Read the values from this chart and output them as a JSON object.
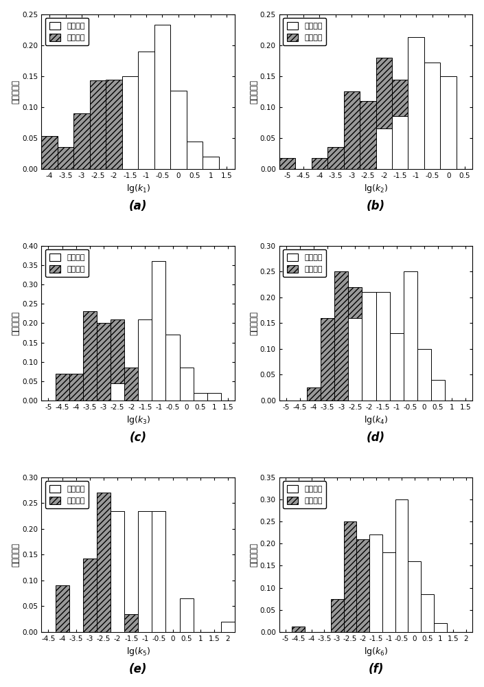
{
  "plots": [
    {
      "label": "(a)",
      "xlabel_key": "k_1",
      "ylim": [
        0,
        0.25
      ],
      "yticks": [
        0.0,
        0.05,
        0.1,
        0.15,
        0.2,
        0.25
      ],
      "xlim": [
        -4.25,
        1.75
      ],
      "xticks": [
        -4.0,
        -3.5,
        -3.0,
        -2.5,
        -2.0,
        -1.5,
        -1.0,
        -0.5,
        0.0,
        0.5,
        1.0,
        1.5
      ],
      "blast_bins": [
        -4.0,
        -3.5,
        -3.0,
        -2.5,
        -2.0,
        -1.5,
        -1.0,
        -0.5,
        0.0,
        0.5,
        1.0
      ],
      "blast_vals": [
        0.0,
        0.0,
        0.0,
        0.0,
        0.0,
        0.15,
        0.19,
        0.233,
        0.127,
        0.044,
        0.02
      ],
      "micro_bins": [
        -4.0,
        -3.5,
        -3.0,
        -2.5,
        -2.0,
        -1.5,
        -1.0,
        -0.5,
        0.0,
        0.5,
        1.0
      ],
      "micro_vals": [
        0.053,
        0.035,
        0.09,
        0.143,
        0.144,
        0.125,
        0.143,
        0.064,
        0.053,
        0.035,
        0.018
      ]
    },
    {
      "label": "(b)",
      "xlabel_key": "k_2",
      "ylim": [
        0,
        0.25
      ],
      "yticks": [
        0.0,
        0.05,
        0.1,
        0.15,
        0.2,
        0.25
      ],
      "xlim": [
        -5.25,
        0.75
      ],
      "xticks": [
        -5.0,
        -4.5,
        -4.0,
        -3.5,
        -3.0,
        -2.5,
        -2.0,
        -1.5,
        -1.0,
        -0.5,
        0.0,
        0.5
      ],
      "blast_bins": [
        -5.0,
        -4.5,
        -4.0,
        -3.5,
        -3.0,
        -2.5,
        -2.0,
        -1.5,
        -1.0,
        -0.5,
        0.0
      ],
      "blast_vals": [
        0.0,
        0.0,
        0.0,
        0.0,
        0.0,
        0.0,
        0.065,
        0.085,
        0.213,
        0.172,
        0.15
      ],
      "micro_bins": [
        -5.0,
        -4.5,
        -4.0,
        -3.5,
        -3.0,
        -2.5,
        -2.0,
        -1.5,
        -1.0,
        -0.5,
        0.0
      ],
      "micro_vals": [
        0.018,
        0.0,
        0.018,
        0.035,
        0.125,
        0.11,
        0.18,
        0.144,
        0.14,
        0.064,
        0.035
      ]
    },
    {
      "label": "(c)",
      "xlabel_key": "k_3",
      "ylim": [
        0,
        0.4
      ],
      "yticks": [
        0.0,
        0.05,
        0.1,
        0.15,
        0.2,
        0.25,
        0.3,
        0.35,
        0.4
      ],
      "xlim": [
        -5.25,
        1.75
      ],
      "xticks": [
        -5.0,
        -4.5,
        -4.0,
        -3.5,
        -3.0,
        -2.5,
        -2.0,
        -1.5,
        -1.0,
        -0.5,
        0.0,
        0.5,
        1.0,
        1.5
      ],
      "blast_bins": [
        -5.0,
        -4.5,
        -4.0,
        -3.5,
        -3.0,
        -2.5,
        -2.0,
        -1.5,
        -1.0,
        -0.5,
        0.0,
        0.5,
        1.0
      ],
      "blast_vals": [
        0.0,
        0.0,
        0.0,
        0.0,
        0.0,
        0.044,
        0.0,
        0.21,
        0.36,
        0.17,
        0.085,
        0.02,
        0.02
      ],
      "micro_bins": [
        -5.0,
        -4.5,
        -4.0,
        -3.5,
        -3.0,
        -2.5,
        -2.0,
        -1.5,
        -1.0,
        -0.5,
        0.0,
        0.5,
        1.0
      ],
      "micro_vals": [
        0.0,
        0.07,
        0.07,
        0.23,
        0.2,
        0.21,
        0.085,
        0.125,
        0.055,
        0.035,
        0.0,
        0.0,
        0.0
      ]
    },
    {
      "label": "(d)",
      "xlabel_key": "k_4",
      "ylim": [
        0,
        0.3
      ],
      "yticks": [
        0.0,
        0.05,
        0.1,
        0.15,
        0.2,
        0.25,
        0.3
      ],
      "xlim": [
        -5.25,
        1.75
      ],
      "xticks": [
        -5.0,
        -4.5,
        -4.0,
        -3.5,
        -3.0,
        -2.5,
        -2.0,
        -1.5,
        -1.0,
        -0.5,
        0.0,
        0.5,
        1.0,
        1.5
      ],
      "blast_bins": [
        -5.0,
        -4.5,
        -4.0,
        -3.5,
        -3.0,
        -2.5,
        -2.0,
        -1.5,
        -1.0,
        -0.5,
        0.0,
        0.5,
        1.0
      ],
      "blast_vals": [
        0.0,
        0.0,
        0.0,
        0.0,
        0.0,
        0.16,
        0.21,
        0.21,
        0.13,
        0.25,
        0.1,
        0.04,
        0.0
      ],
      "micro_bins": [
        -5.0,
        -4.5,
        -4.0,
        -3.5,
        -3.0,
        -2.5,
        -2.0,
        -1.5,
        -1.0,
        -0.5,
        0.0,
        0.5,
        1.0
      ],
      "micro_vals": [
        0.0,
        0.0,
        0.025,
        0.16,
        0.25,
        0.22,
        0.21,
        0.085,
        0.055,
        0.0,
        0.0,
        0.0,
        0.0
      ]
    },
    {
      "label": "(e)",
      "xlabel_key": "k_5",
      "ylim": [
        0,
        0.3
      ],
      "yticks": [
        0.0,
        0.05,
        0.1,
        0.15,
        0.2,
        0.25,
        0.3
      ],
      "xlim": [
        -4.75,
        2.25
      ],
      "xticks": [
        -4.5,
        -4.0,
        -3.5,
        -3.0,
        -2.5,
        -2.0,
        -1.5,
        -1.0,
        -0.5,
        0.0,
        0.5,
        1.0,
        1.5,
        2.0
      ],
      "blast_bins": [
        -4.0,
        -3.5,
        -3.0,
        -2.5,
        -2.0,
        -1.5,
        -1.0,
        -0.5,
        0.0,
        0.5,
        1.0,
        1.5,
        2.0
      ],
      "blast_vals": [
        0.0,
        0.0,
        0.0,
        0.0,
        0.235,
        0.0,
        0.235,
        0.235,
        0.0,
        0.065,
        0.0,
        0.0,
        0.02
      ],
      "micro_bins": [
        -4.0,
        -3.5,
        -3.0,
        -2.5,
        -2.0,
        -1.5,
        -1.0,
        -0.5,
        0.0,
        0.5,
        1.0,
        1.5,
        2.0
      ],
      "micro_vals": [
        0.09,
        0.0,
        0.143,
        0.27,
        0.2,
        0.035,
        0.035,
        0.0,
        0.0,
        0.0,
        0.0,
        0.0,
        0.0
      ]
    },
    {
      "label": "(f)",
      "xlabel_key": "k_6",
      "ylim": [
        0,
        0.35
      ],
      "yticks": [
        0.0,
        0.05,
        0.1,
        0.15,
        0.2,
        0.25,
        0.3,
        0.35
      ],
      "xlim": [
        -5.25,
        2.25
      ],
      "xticks": [
        -5.0,
        -4.5,
        -4.0,
        -3.5,
        -3.0,
        -2.5,
        -2.0,
        -1.5,
        -1.0,
        -0.5,
        0.0,
        0.5,
        1.0,
        1.5,
        2.0
      ],
      "blast_bins": [
        -5.0,
        -4.5,
        -4.0,
        -3.5,
        -3.0,
        -2.5,
        -2.0,
        -1.5,
        -1.0,
        -0.5,
        0.0,
        0.5,
        1.0,
        1.5,
        2.0
      ],
      "blast_vals": [
        0.0,
        0.0,
        0.0,
        0.0,
        0.0,
        0.0,
        0.0,
        0.22,
        0.18,
        0.3,
        0.16,
        0.085,
        0.02,
        0.0,
        0.0
      ],
      "micro_bins": [
        -5.0,
        -4.5,
        -4.0,
        -3.5,
        -3.0,
        -2.5,
        -2.0,
        -1.5,
        -1.0,
        -0.5,
        0.0,
        0.5,
        1.0,
        1.5,
        2.0
      ],
      "micro_vals": [
        0.0,
        0.013,
        0.0,
        0.0,
        0.075,
        0.25,
        0.21,
        0.0,
        0.035,
        0.0,
        0.0,
        0.0,
        0.0,
        0.0,
        0.0
      ]
    }
  ],
  "ylabel": "事件的频次",
  "legend_blast": "爆破事件",
  "legend_micro": "微震事件",
  "bar_width": 0.5
}
